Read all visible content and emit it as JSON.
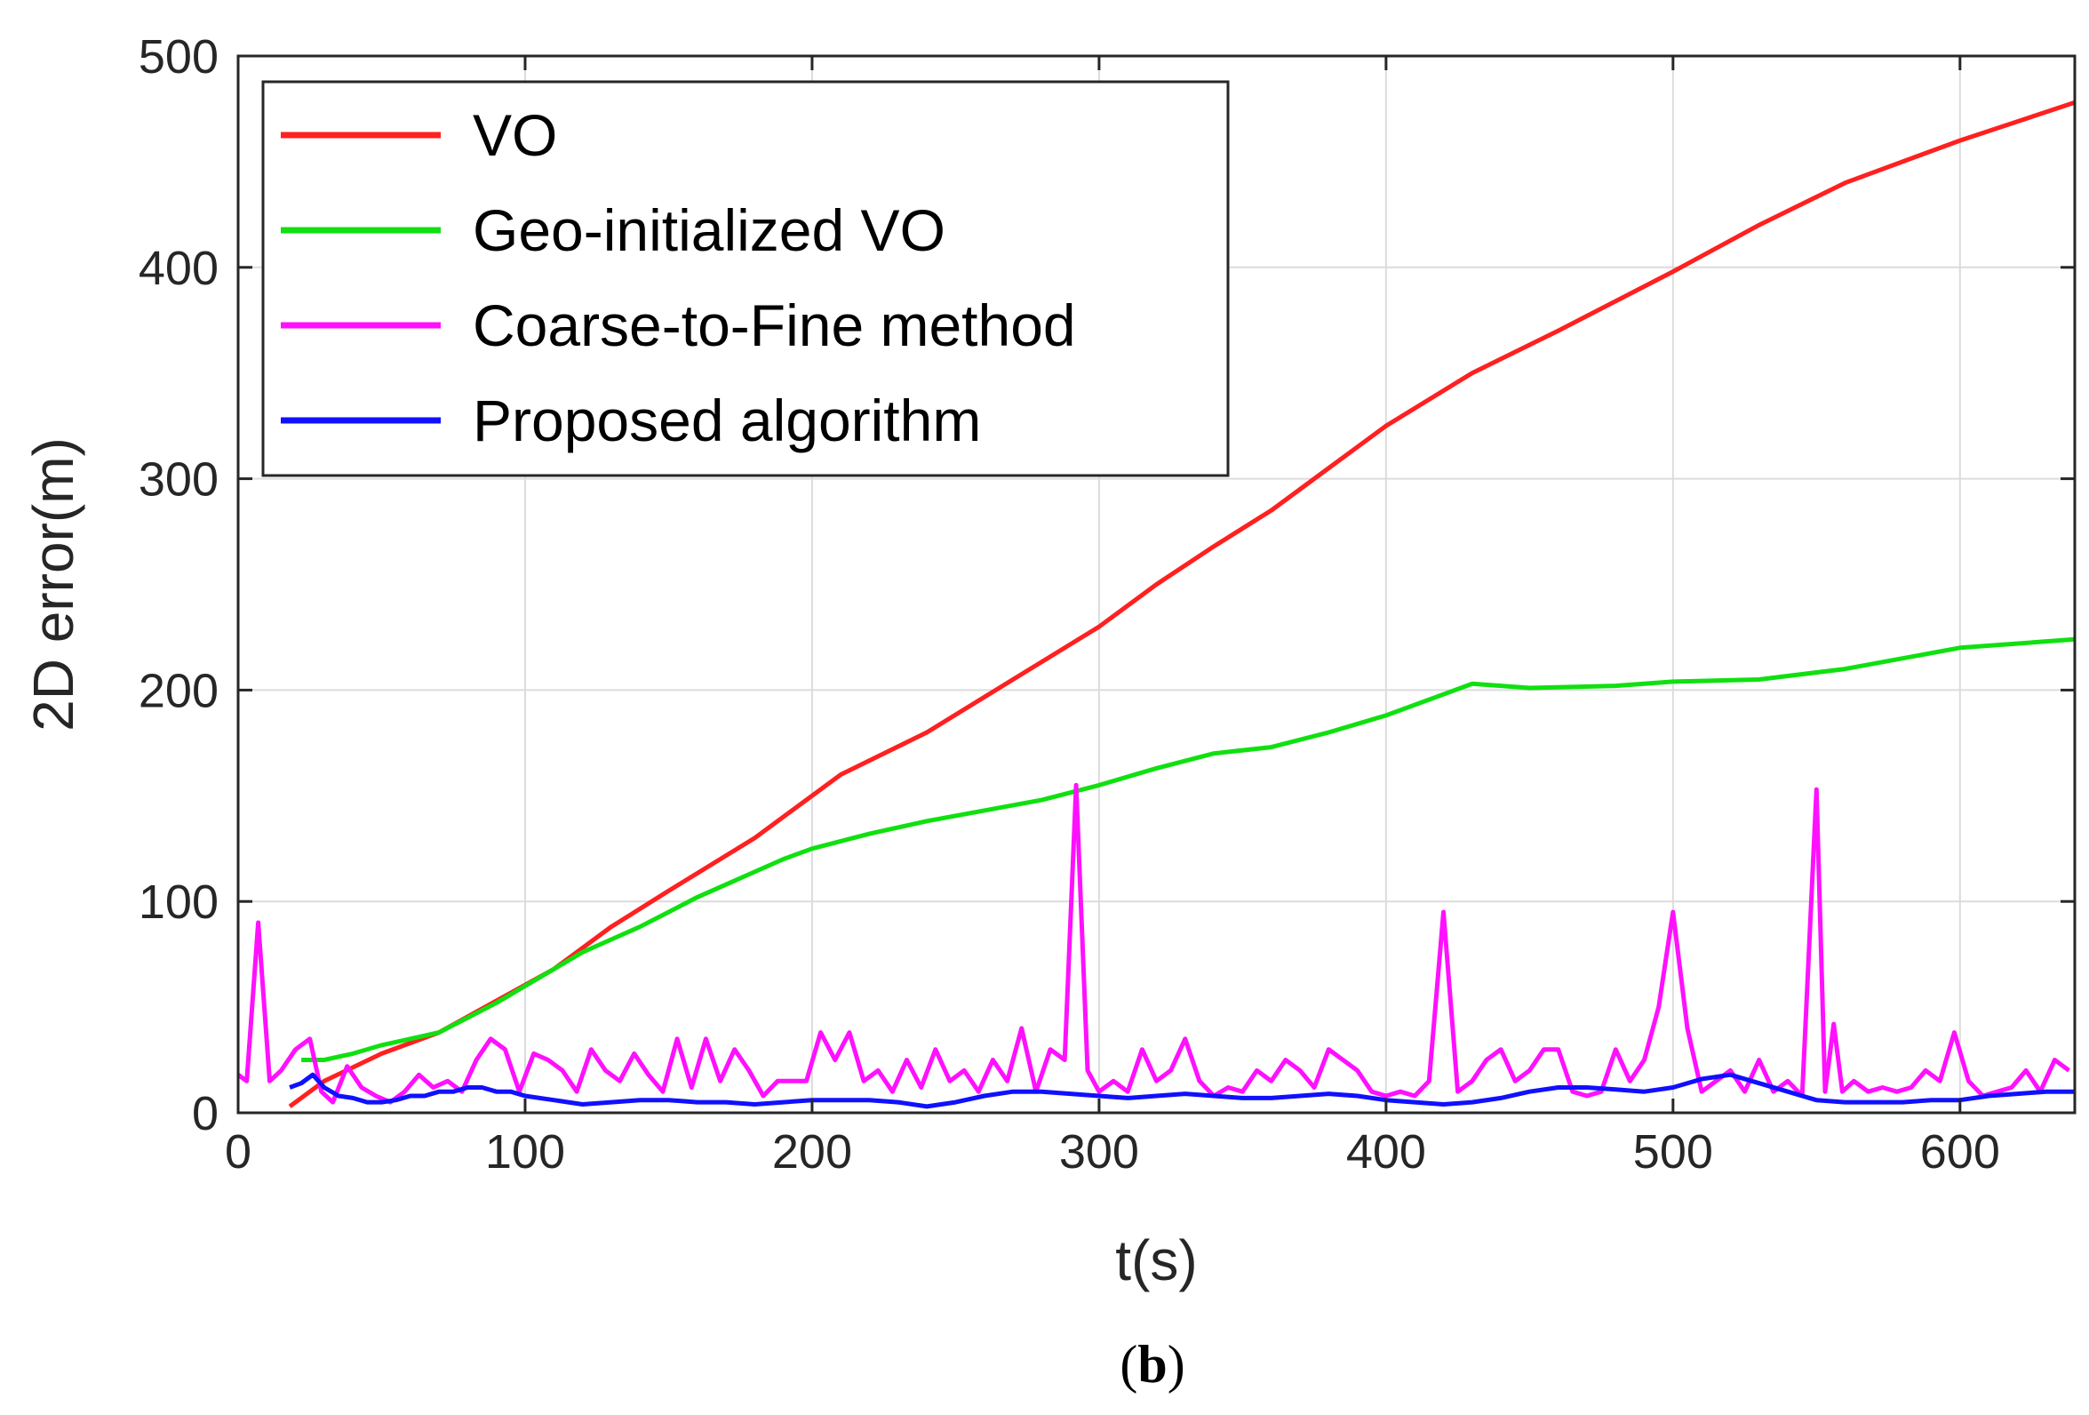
{
  "chart_data": {
    "type": "line",
    "title": "",
    "panel_label": {
      "open": "(",
      "letter": "b",
      "close": ")"
    },
    "xlabel": "t(s)",
    "ylabel": "2D error(m)",
    "xlim": [
      0,
      640
    ],
    "ylim": [
      0,
      500
    ],
    "xticks": [
      0,
      100,
      200,
      300,
      400,
      500,
      600
    ],
    "yticks": [
      0,
      100,
      200,
      300,
      400,
      500
    ],
    "grid": true,
    "legend_position": "top-left",
    "series": [
      {
        "name": "VO",
        "color": "#ff2020",
        "x": [
          18,
          30,
          50,
          70,
          90,
          110,
          130,
          150,
          180,
          200,
          210,
          240,
          270,
          300,
          320,
          340,
          360,
          380,
          400,
          430,
          460,
          500,
          530,
          560,
          600,
          640
        ],
        "y": [
          3,
          15,
          28,
          38,
          53,
          68,
          88,
          105,
          130,
          150,
          160,
          180,
          205,
          230,
          250,
          268,
          285,
          305,
          325,
          350,
          370,
          398,
          420,
          440,
          460,
          478
        ]
      },
      {
        "name": "Geo-initialized VO",
        "color": "#10e010",
        "x": [
          22,
          30,
          40,
          50,
          60,
          70,
          80,
          90,
          100,
          110,
          120,
          130,
          140,
          150,
          160,
          170,
          180,
          190,
          200,
          220,
          240,
          260,
          280,
          300,
          320,
          340,
          360,
          380,
          400,
          420,
          430,
          450,
          480,
          500,
          530,
          560,
          600,
          640
        ],
        "y": [
          25,
          25,
          28,
          32,
          35,
          38,
          45,
          52,
          60,
          68,
          76,
          82,
          88,
          95,
          102,
          108,
          114,
          120,
          125,
          132,
          138,
          143,
          148,
          155,
          163,
          170,
          173,
          180,
          188,
          198,
          203,
          201,
          202,
          204,
          205,
          210,
          220,
          224
        ]
      },
      {
        "name": "Coarse-to-Fine method",
        "color": "#ff10ff",
        "x": [
          0,
          3,
          7,
          11,
          15,
          20,
          25,
          29,
          33,
          38,
          43,
          48,
          53,
          58,
          63,
          68,
          73,
          78,
          83,
          88,
          93,
          98,
          103,
          108,
          113,
          118,
          123,
          128,
          133,
          138,
          143,
          148,
          153,
          158,
          163,
          168,
          173,
          178,
          183,
          188,
          193,
          198,
          203,
          208,
          213,
          218,
          223,
          228,
          233,
          238,
          243,
          248,
          253,
          258,
          263,
          268,
          273,
          278,
          283,
          288,
          292,
          296,
          300,
          305,
          310,
          315,
          320,
          325,
          330,
          335,
          340,
          345,
          350,
          355,
          360,
          365,
          370,
          375,
          380,
          385,
          390,
          395,
          400,
          405,
          410,
          415,
          420,
          425,
          430,
          435,
          440,
          445,
          450,
          455,
          460,
          465,
          470,
          475,
          480,
          485,
          490,
          495,
          500,
          505,
          510,
          515,
          520,
          525,
          530,
          535,
          540,
          545,
          550,
          553,
          556,
          559,
          563,
          568,
          573,
          578,
          583,
          588,
          593,
          598,
          603,
          608,
          613,
          618,
          623,
          628,
          633,
          638
        ],
        "y": [
          18,
          15,
          90,
          15,
          20,
          30,
          35,
          10,
          5,
          22,
          12,
          8,
          5,
          10,
          18,
          12,
          15,
          10,
          25,
          35,
          30,
          10,
          28,
          25,
          20,
          10,
          30,
          20,
          15,
          28,
          18,
          10,
          35,
          12,
          35,
          15,
          30,
          20,
          8,
          15,
          15,
          15,
          38,
          25,
          38,
          15,
          20,
          10,
          25,
          12,
          30,
          15,
          20,
          10,
          25,
          15,
          40,
          10,
          30,
          25,
          155,
          20,
          10,
          15,
          10,
          30,
          15,
          20,
          35,
          15,
          8,
          12,
          10,
          20,
          15,
          25,
          20,
          12,
          30,
          25,
          20,
          10,
          8,
          10,
          8,
          15,
          95,
          10,
          15,
          25,
          30,
          15,
          20,
          30,
          30,
          10,
          8,
          10,
          30,
          15,
          25,
          50,
          95,
          40,
          10,
          15,
          20,
          10,
          25,
          10,
          15,
          8,
          153,
          10,
          42,
          10,
          15,
          10,
          12,
          10,
          12,
          20,
          15,
          38,
          15,
          8,
          10,
          12,
          20,
          10,
          25,
          20
        ]
      },
      {
        "name": "Proposed algorithm",
        "color": "#1010ff",
        "x": [
          18,
          22,
          26,
          30,
          35,
          40,
          45,
          50,
          55,
          60,
          65,
          70,
          75,
          80,
          85,
          90,
          95,
          100,
          110,
          120,
          130,
          140,
          150,
          160,
          170,
          180,
          190,
          200,
          210,
          220,
          230,
          240,
          250,
          260,
          270,
          280,
          290,
          300,
          310,
          320,
          330,
          340,
          350,
          360,
          370,
          380,
          390,
          400,
          410,
          420,
          430,
          440,
          450,
          460,
          470,
          480,
          490,
          500,
          510,
          520,
          530,
          540,
          550,
          560,
          570,
          580,
          590,
          600,
          610,
          620,
          630,
          640
        ],
        "y": [
          12,
          14,
          18,
          12,
          8,
          7,
          5,
          5,
          6,
          8,
          8,
          10,
          10,
          12,
          12,
          10,
          10,
          8,
          6,
          4,
          5,
          6,
          6,
          5,
          5,
          4,
          5,
          6,
          6,
          6,
          5,
          3,
          5,
          8,
          10,
          10,
          9,
          8,
          7,
          8,
          9,
          8,
          7,
          7,
          8,
          9,
          8,
          6,
          5,
          4,
          5,
          7,
          10,
          12,
          12,
          11,
          10,
          12,
          16,
          18,
          14,
          10,
          6,
          5,
          5,
          5,
          6,
          6,
          8,
          9,
          10,
          10
        ]
      }
    ]
  }
}
